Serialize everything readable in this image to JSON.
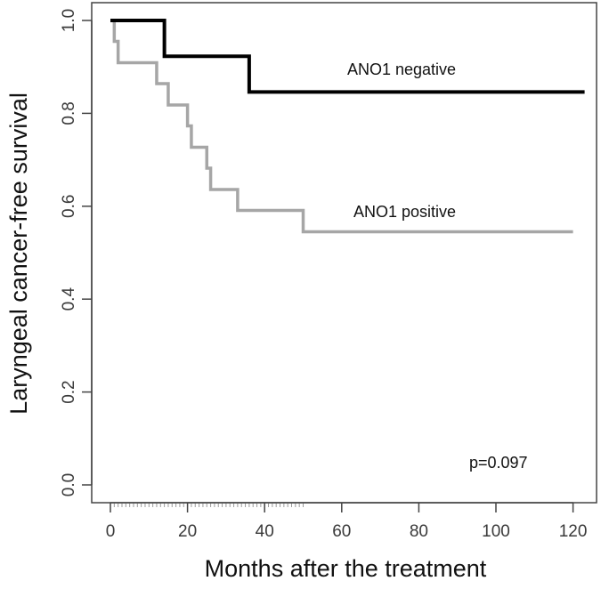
{
  "chart_data": {
    "type": "line",
    "subtype": "kaplan-meier step",
    "xlabel": "Months after the treatment",
    "ylabel": "Laryngeal cancer-free survival",
    "xlim": [
      0,
      123
    ],
    "ylim": [
      0,
      1.0
    ],
    "x_ticks": [
      0,
      20,
      40,
      60,
      80,
      100,
      120
    ],
    "x_tick_labels": [
      "0",
      "20",
      "40",
      "60",
      "80",
      "100",
      "120"
    ],
    "y_ticks": [
      0.0,
      0.2,
      0.4,
      0.6,
      0.8,
      1.0
    ],
    "y_tick_labels": [
      "0.0",
      "0.2",
      "0.4",
      "0.6",
      "0.8",
      "1.0"
    ],
    "grid": false,
    "series": [
      {
        "name": "ANO1 negative",
        "color": "#000000",
        "x": [
          0,
          14,
          36,
          123
        ],
        "y": [
          1.0,
          0.923,
          0.846,
          0.846
        ]
      },
      {
        "name": "ANO1 positive",
        "color": "#a6a6a6",
        "x": [
          0,
          1,
          2,
          12,
          15,
          20,
          21,
          25,
          26,
          33,
          50,
          120
        ],
        "y": [
          1.0,
          0.955,
          0.909,
          0.864,
          0.818,
          0.773,
          0.727,
          0.682,
          0.636,
          0.591,
          0.545,
          0.545
        ]
      }
    ],
    "annotations": {
      "negative_label": "ANO1 negative",
      "positive_label": "ANO1 positive",
      "p_value": "p=0.097"
    }
  }
}
